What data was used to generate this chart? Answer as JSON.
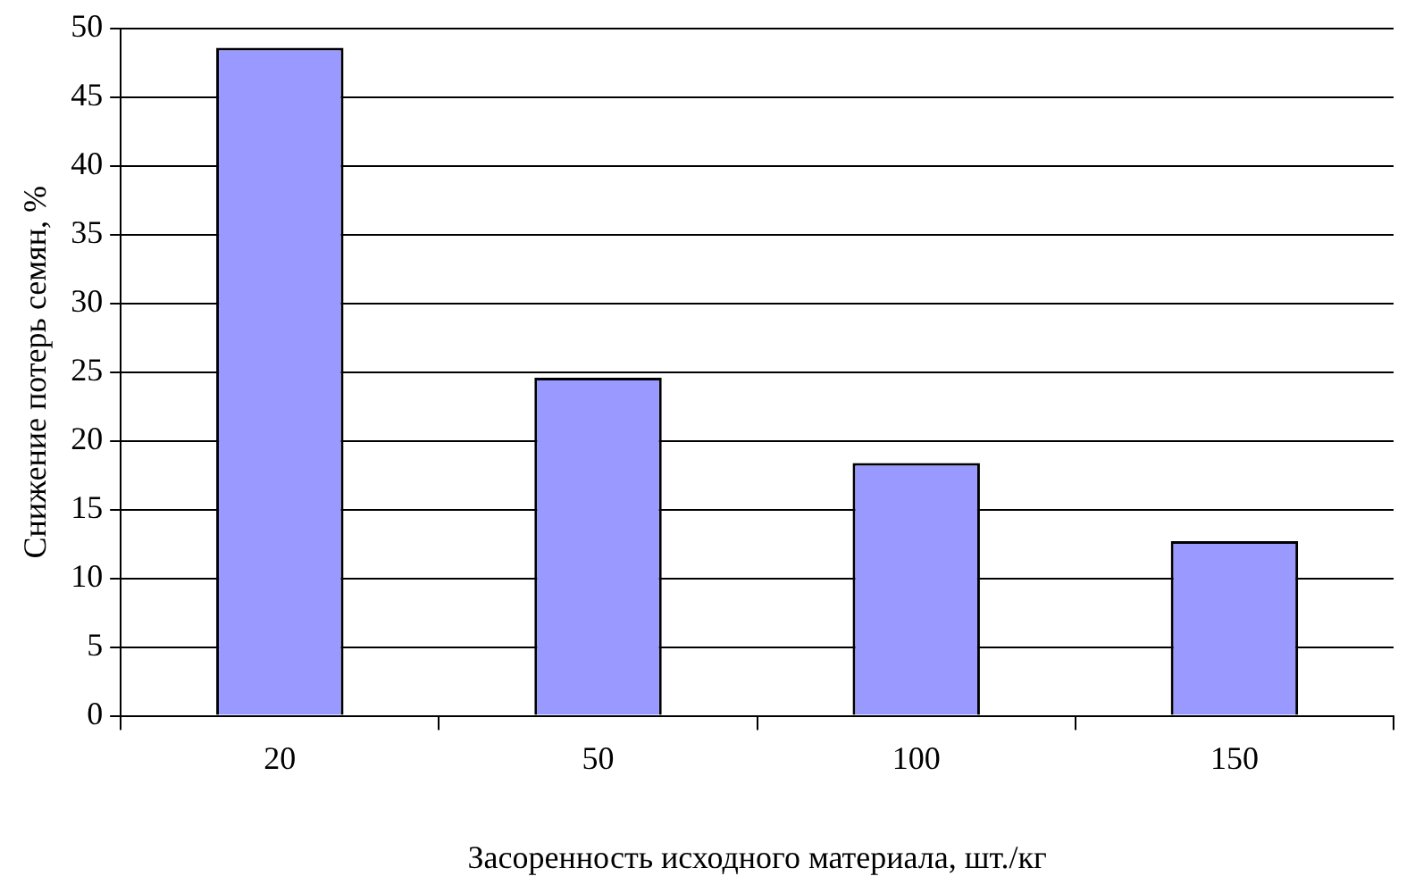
{
  "chart_data": {
    "type": "bar",
    "xlabel": "Засоренность исходного материала, шт./кг",
    "ylabel": "Снижение потерь семян, %",
    "categories": [
      "20",
      "50",
      "100",
      "150"
    ],
    "values": [
      48.6,
      24.6,
      18.4,
      12.7
    ],
    "color": "#9999ff",
    "ylim": [
      0,
      50
    ],
    "yticks": [
      0,
      5,
      10,
      15,
      20,
      25,
      30,
      35,
      40,
      45,
      50
    ],
    "grid": "y"
  }
}
